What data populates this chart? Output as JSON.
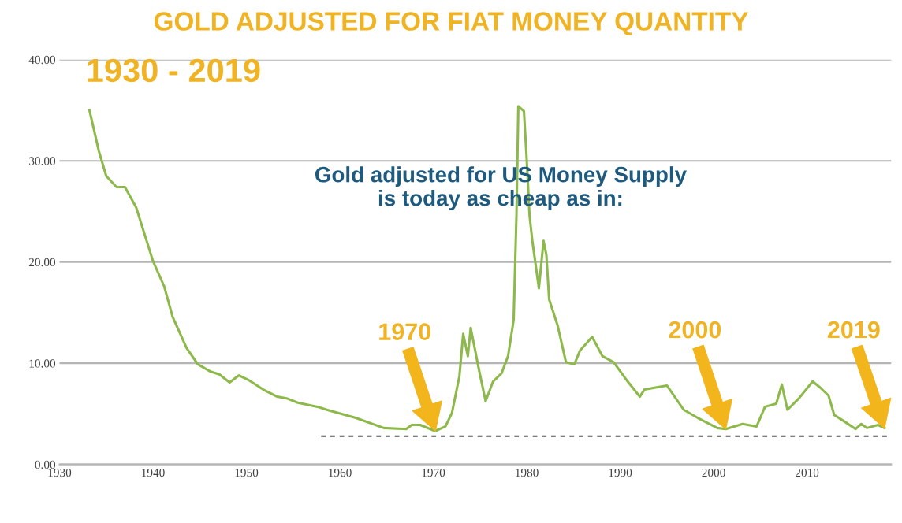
{
  "chart_data": {
    "type": "line",
    "title": "GOLD ADJUSTED FOR FIAT MONEY QUANTITY",
    "series": [
      {
        "color": "#8db84a",
        "x": [
          1933.2,
          1934.2,
          1935.0,
          1936.1,
          1937.0,
          1938.2,
          1940.0,
          1941.2,
          1942.1,
          1943.6,
          1944.8,
          1946.1,
          1947.1,
          1948.2,
          1949.2,
          1950.3,
          1951.8,
          1953.3,
          1954.4,
          1955.5,
          1957.6,
          1958.6,
          1961.7,
          1964.7,
          1967.1,
          1967.7,
          1968.6,
          1970.2,
          1971.3,
          1972.0,
          1972.8,
          1973.2,
          1973.7,
          1974.0,
          1974.9,
          1975.6,
          1976.4,
          1977.3,
          1978.0,
          1978.6,
          1978.9,
          1979.1,
          1979.7,
          1980.0,
          1980.3,
          1980.6,
          1981.3,
          1981.8,
          1982.1,
          1982.4,
          1983.3,
          1984.2,
          1985.1,
          1985.7,
          1987.0,
          1988.1,
          1989.3,
          1990.8,
          1992.1,
          1992.6,
          1995.0,
          1996.8,
          1998.3,
          2000.4,
          2001.3,
          2003.1,
          2004.6,
          2005.5,
          2006.7,
          2007.3,
          2007.9,
          2009.1,
          2010.6,
          2011.4,
          2012.3,
          2012.9,
          2013.9,
          2015.2,
          2015.8,
          2016.4,
          2017.6,
          2018.3
        ],
        "values": [
          35.0,
          31.0,
          28.5,
          27.4,
          27.4,
          25.4,
          20.1,
          17.6,
          14.6,
          11.5,
          9.9,
          9.2,
          8.9,
          8.1,
          8.8,
          8.3,
          7.4,
          6.7,
          6.5,
          6.1,
          5.7,
          5.4,
          4.6,
          3.6,
          3.5,
          3.9,
          3.9,
          3.3,
          3.75,
          5.1,
          8.75,
          12.9,
          10.7,
          13.5,
          9.3,
          6.25,
          8.2,
          9.0,
          10.7,
          14.3,
          24.6,
          35.4,
          34.9,
          30.1,
          24.6,
          22.1,
          17.4,
          22.1,
          20.7,
          16.3,
          13.75,
          10.1,
          9.9,
          11.25,
          12.6,
          10.7,
          10.1,
          8.2,
          6.7,
          7.4,
          7.8,
          5.4,
          4.6,
          3.6,
          3.5,
          4.0,
          3.75,
          5.7,
          6.0,
          7.9,
          5.4,
          6.5,
          8.2,
          7.6,
          6.8,
          4.9,
          4.3,
          3.5,
          4.0,
          3.6,
          3.9,
          3.6
        ]
      },
      {
        "color": "#555555",
        "line_style": "dashed",
        "x": [
          1958,
          2019
        ],
        "values": [
          2.8,
          2.8
        ]
      }
    ],
    "xlim": [
      1930,
      2019
    ],
    "xticks": [
      1930,
      1940,
      1950,
      1960,
      1970,
      1980,
      1990,
      2000,
      2010
    ],
    "ylim": [
      0,
      40
    ],
    "yticks": [
      {
        "value": 0,
        "label": "0.00"
      },
      {
        "value": 10,
        "label": "10.00"
      },
      {
        "value": 20,
        "label": "20.00"
      },
      {
        "value": 30,
        "label": "30.00"
      },
      {
        "value": 40,
        "label": "40.00"
      }
    ],
    "grid": "y",
    "annotations": [
      "1930 - 2019",
      "Gold adjusted for US Money Supply\nis today as cheap as in:",
      "1970",
      "2000",
      "2019"
    ]
  }
}
